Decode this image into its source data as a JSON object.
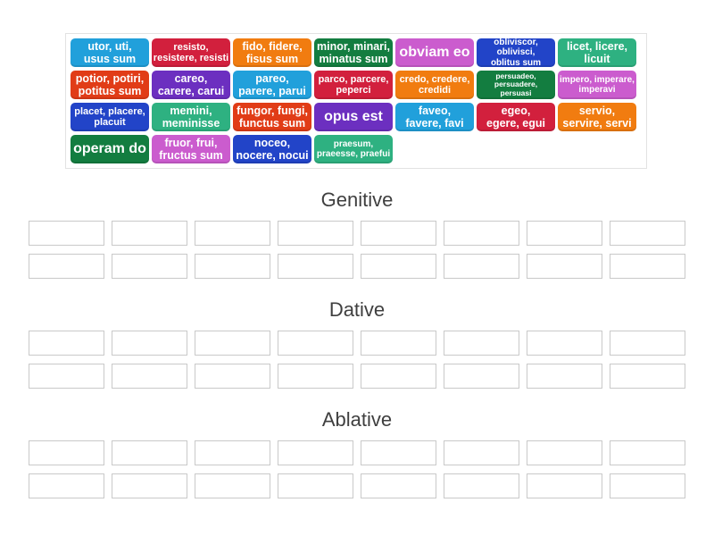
{
  "palette": {
    "azure": "#21a0db",
    "crimson": "#d2203d",
    "orange": "#f17c10",
    "dark_green": "#137d40",
    "orchid": "#cb5cce",
    "royal_blue": "#2244c8",
    "sea_green": "#2eb181",
    "vermillion": "#e13c17",
    "purple": "#6c2fc0"
  },
  "word_bank": {
    "tiles": [
      {
        "id": "utor",
        "label": "utor, uti,\nusus sum",
        "color": "azure",
        "size": "m"
      },
      {
        "id": "resisto",
        "label": "resisto,\nresistere, resisti",
        "color": "crimson",
        "size": "s"
      },
      {
        "id": "fido",
        "label": "fido, fidere,\nfisus sum",
        "color": "orange",
        "size": "m"
      },
      {
        "id": "minor",
        "label": "minor, minari,\nminatus sum",
        "color": "dark_green",
        "size": "m"
      },
      {
        "id": "obviam-eo",
        "label": "obviam eo",
        "color": "orchid",
        "size": "l"
      },
      {
        "id": "obliviscor",
        "label": "obliviscor, oblivisci,\noblitus sum",
        "color": "royal_blue",
        "size": "xs"
      },
      {
        "id": "licet",
        "label": "licet, licere,\nlicuit",
        "color": "sea_green",
        "size": "m"
      },
      {
        "id": "potior",
        "label": "potior, potiri,\npotitus sum",
        "color": "vermillion",
        "size": "m"
      },
      {
        "id": "careo",
        "label": "careo,\ncarere, carui",
        "color": "purple",
        "size": "m"
      },
      {
        "id": "pareo",
        "label": "pareo,\nparere, parui",
        "color": "azure",
        "size": "m"
      },
      {
        "id": "parco",
        "label": "parco, parcere,\npeperci",
        "color": "crimson",
        "size": "s"
      },
      {
        "id": "credo",
        "label": "credo, credere,\ncredidi",
        "color": "orange",
        "size": "s"
      },
      {
        "id": "persuadeo",
        "label": "persuadeo,\npersuadere,\npersuasi",
        "color": "dark_green",
        "size": "xxs"
      },
      {
        "id": "impero",
        "label": "impero, imperare,\nimperavi",
        "color": "orchid",
        "size": "xs"
      },
      {
        "id": "placet",
        "label": "placet, placere,\nplacuit",
        "color": "royal_blue",
        "size": "s"
      },
      {
        "id": "memini",
        "label": "memini,\nmeminisse",
        "color": "sea_green",
        "size": "m"
      },
      {
        "id": "fungor",
        "label": "fungor, fungi,\nfunctus sum",
        "color": "vermillion",
        "size": "m"
      },
      {
        "id": "opus-est",
        "label": "opus est",
        "color": "purple",
        "size": "l"
      },
      {
        "id": "faveo",
        "label": "faveo,\nfavere, favi",
        "color": "azure",
        "size": "m"
      },
      {
        "id": "egeo",
        "label": "egeo,\negere, egui",
        "color": "crimson",
        "size": "m"
      },
      {
        "id": "servio",
        "label": "servio,\nservire, servi",
        "color": "orange",
        "size": "m"
      },
      {
        "id": "operam-do",
        "label": "operam do",
        "color": "dark_green",
        "size": "l"
      },
      {
        "id": "fruor",
        "label": "fruor, frui,\nfructus sum",
        "color": "orchid",
        "size": "m"
      },
      {
        "id": "noceo",
        "label": "noceo,\nnocere, nocui",
        "color": "royal_blue",
        "size": "m"
      },
      {
        "id": "praesum",
        "label": "praesum,\npraeesse, praefui",
        "color": "sea_green",
        "size": "xs"
      }
    ]
  },
  "groups": [
    {
      "label": "Genitive",
      "rows": 2,
      "cols": 8
    },
    {
      "label": "Dative",
      "rows": 2,
      "cols": 8
    },
    {
      "label": "Ablative",
      "rows": 2,
      "cols": 8
    }
  ]
}
